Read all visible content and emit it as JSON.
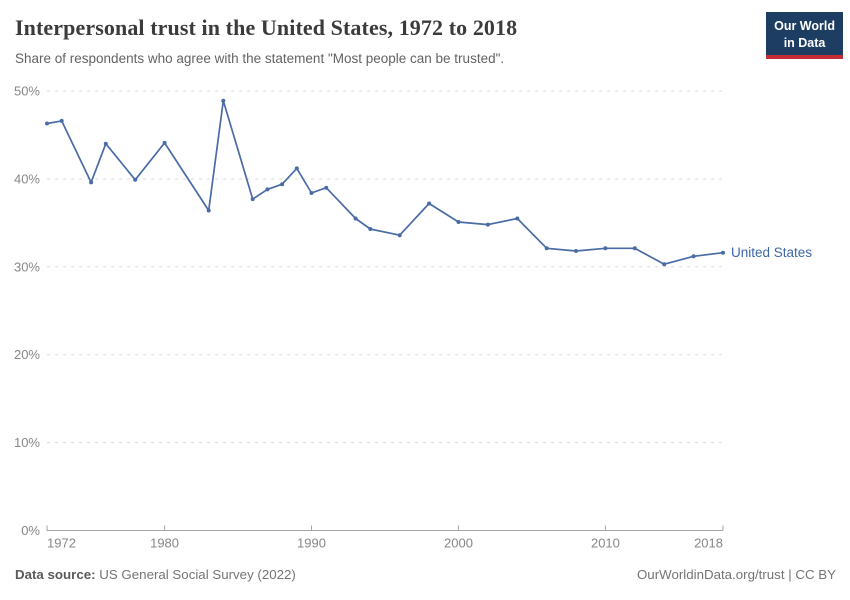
{
  "header": {
    "title": "Interpersonal trust in the United States, 1972 to 2018",
    "subtitle": "Share of respondents who agree with the statement \"Most people can be trusted\"."
  },
  "logo": {
    "line1": "Our World",
    "line2": "in Data"
  },
  "chart_data": {
    "type": "line",
    "title": "Interpersonal trust in the United States, 1972 to 2018",
    "xlabel": "",
    "ylabel": "",
    "xlim": [
      1972,
      2018
    ],
    "ylim": [
      0,
      50
    ],
    "grid": "horizontal-dashed",
    "legend_position": "end-of-line",
    "x_ticks": [
      1972,
      1980,
      1990,
      2000,
      2010,
      2018
    ],
    "y_ticks": [
      0,
      10,
      20,
      30,
      40,
      50
    ],
    "y_tick_labels": [
      "0%",
      "10%",
      "20%",
      "30%",
      "40%",
      "50%"
    ],
    "series": [
      {
        "name": "United States",
        "color": "#4a6ba5",
        "points": [
          [
            1972,
            46.3
          ],
          [
            1973,
            46.6
          ],
          [
            1975,
            39.6
          ],
          [
            1976,
            44.0
          ],
          [
            1978,
            39.9
          ],
          [
            1980,
            44.1
          ],
          [
            1983,
            36.4
          ],
          [
            1984,
            48.9
          ],
          [
            1986,
            37.7
          ],
          [
            1987,
            38.8
          ],
          [
            1988,
            39.4
          ],
          [
            1989,
            41.2
          ],
          [
            1990,
            38.4
          ],
          [
            1991,
            39.0
          ],
          [
            1993,
            35.5
          ],
          [
            1994,
            34.3
          ],
          [
            1996,
            33.6
          ],
          [
            1998,
            37.2
          ],
          [
            2000,
            35.1
          ],
          [
            2002,
            34.8
          ],
          [
            2004,
            35.5
          ],
          [
            2006,
            32.1
          ],
          [
            2008,
            31.8
          ],
          [
            2010,
            32.1
          ],
          [
            2012,
            32.1
          ],
          [
            2014,
            30.3
          ],
          [
            2016,
            31.2
          ],
          [
            2018,
            31.6
          ]
        ]
      }
    ]
  },
  "footer": {
    "source_label": "Data source:",
    "source_value": "US General Social Survey (2022)",
    "credit": "OurWorldinData.org/trust | CC BY"
  },
  "colors": {
    "line": "#4a6ba5",
    "series_label": "#3f67a8",
    "grid": "#dadada",
    "axis": "#a5a5a5",
    "tick_label": "#878787",
    "logo_bg": "#1d3d63",
    "logo_accent": "#c32e35"
  }
}
